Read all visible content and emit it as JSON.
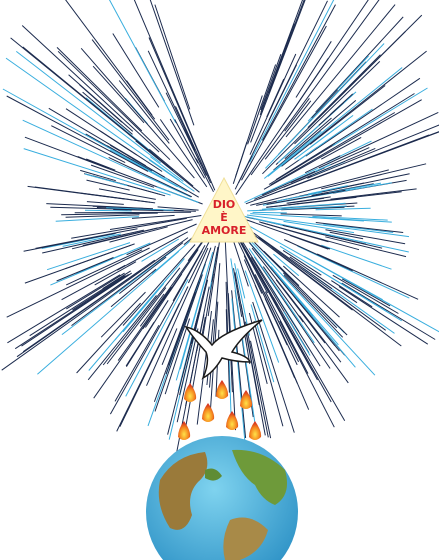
{
  "triangle": {
    "lines": [
      "DIO",
      "È",
      "AMORE"
    ]
  }
}
